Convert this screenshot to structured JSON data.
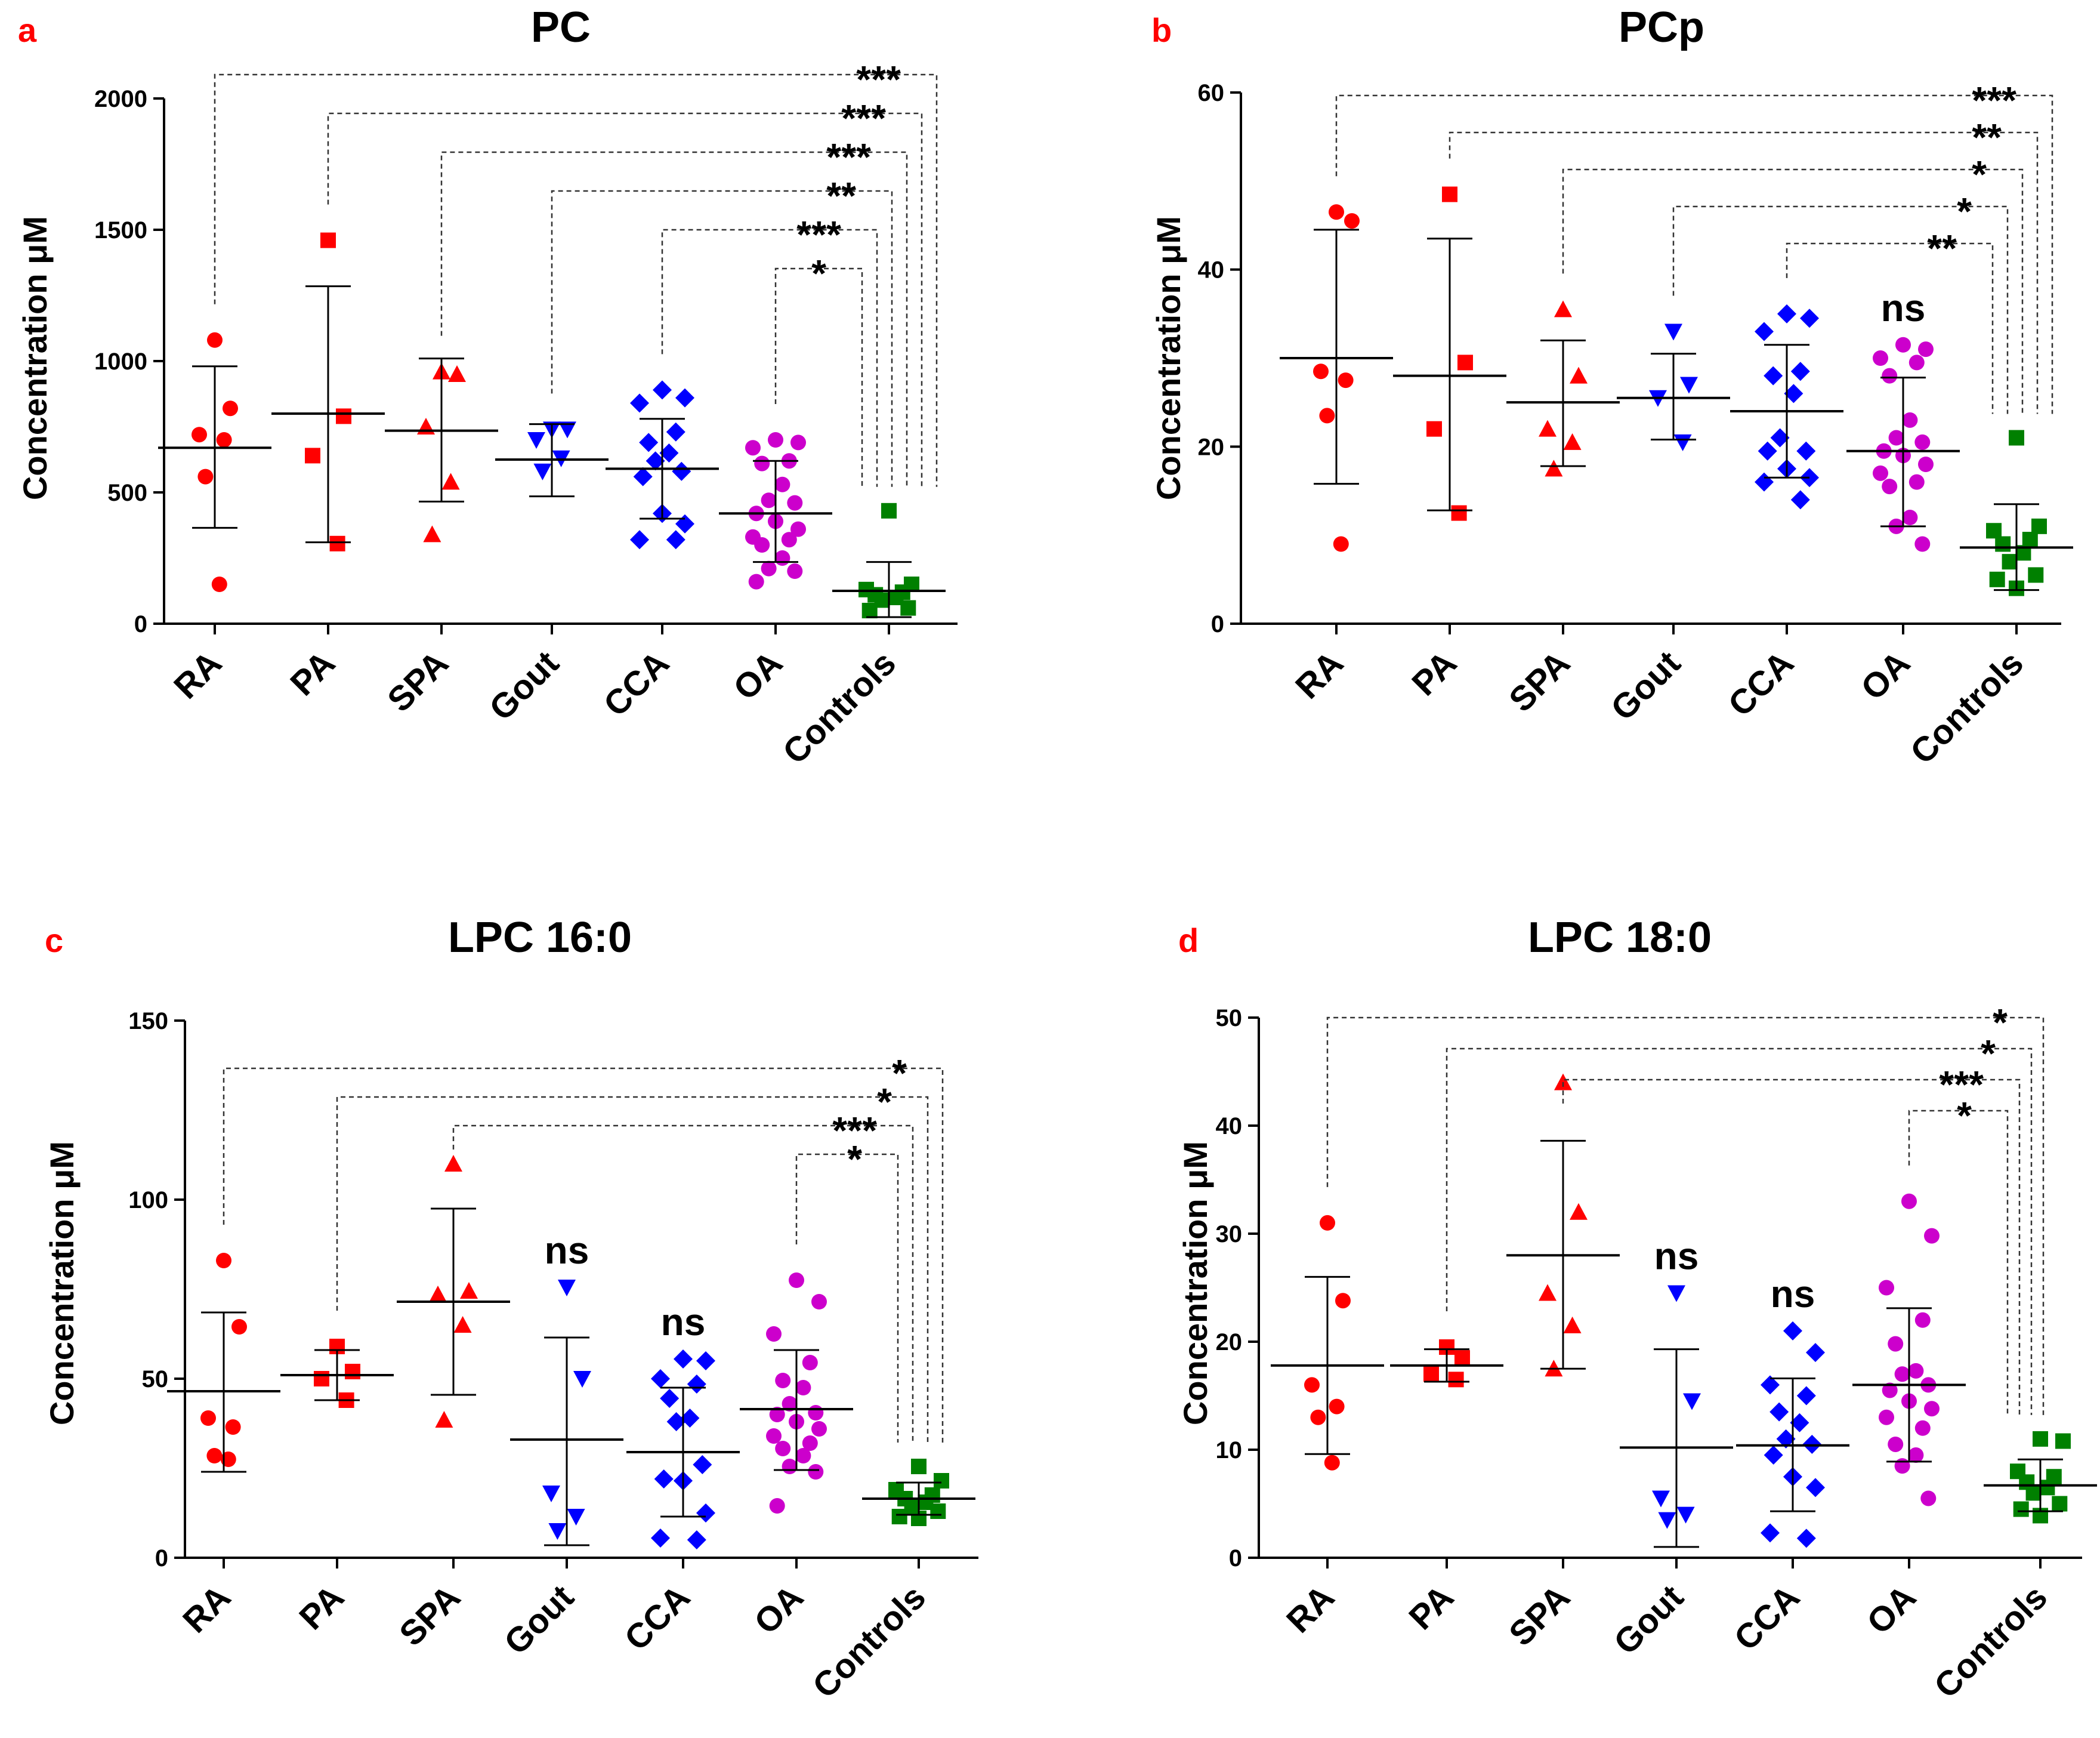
{
  "groups": [
    "RA",
    "PA",
    "SPA",
    "Gout",
    "CCA",
    "OA",
    "Controls"
  ],
  "ylabel": "Concentration μM",
  "colors": {
    "RA": "#ff0000",
    "PA": "#ff0000",
    "SPA": "#ff0000",
    "Gout": "#0000ff",
    "CCA": "#0000ff",
    "OA": "#cc00cc",
    "Controls": "#008000",
    "panel_letter": "#ff0000"
  },
  "markers": {
    "RA": "circle",
    "PA": "square",
    "SPA": "triangle-up",
    "Gout": "triangle-down",
    "CCA": "diamond",
    "OA": "circle",
    "Controls": "square"
  },
  "chart_data": [
    {
      "panel": "a",
      "title": "PC",
      "type": "scatter",
      "ylim": [
        0,
        2000
      ],
      "yticks": [
        "0",
        "500",
        "1000",
        "1500",
        "2000"
      ],
      "series": [
        {
          "name": "RA",
          "values": [
            1080,
            820,
            720,
            700,
            560,
            150
          ],
          "mean": 670,
          "sd_low": 365,
          "sd_high": 980
        },
        {
          "name": "PA",
          "values": [
            1460,
            790,
            640,
            305
          ],
          "mean": 800,
          "sd_low": 310,
          "sd_high": 1285
        },
        {
          "name": "SPA",
          "values": [
            960,
            950,
            750,
            540,
            340
          ],
          "mean": 735,
          "sd_low": 465,
          "sd_high": 1010
        },
        {
          "name": "Gout",
          "values": [
            740,
            740,
            700,
            630,
            580
          ],
          "mean": 625,
          "sd_low": 485,
          "sd_high": 760
        },
        {
          "name": "CCA",
          "values": [
            890,
            860,
            840,
            730,
            690,
            650,
            620,
            580,
            560,
            420,
            380,
            320,
            320
          ],
          "mean": 590,
          "sd_low": 400,
          "sd_high": 780
        },
        {
          "name": "OA",
          "values": [
            700,
            690,
            670,
            620,
            610,
            530,
            470,
            460,
            420,
            390,
            360,
            330,
            320,
            300,
            250,
            210,
            200,
            160
          ],
          "mean": 420,
          "sd_low": 235,
          "sd_high": 620
        },
        {
          "name": "Controls",
          "values": [
            430,
            150,
            130,
            120,
            110,
            100,
            90,
            60,
            50
          ],
          "mean": 125,
          "sd_low": 25,
          "sd_high": 235
        }
      ],
      "comparisons": [
        {
          "group": "RA",
          "label": "***"
        },
        {
          "group": "PA",
          "label": "***"
        },
        {
          "group": "SPA",
          "label": "***"
        },
        {
          "group": "Gout",
          "label": "**"
        },
        {
          "group": "CCA",
          "label": "***"
        },
        {
          "group": "OA",
          "label": "*"
        }
      ]
    },
    {
      "panel": "b",
      "title": "PCp",
      "type": "scatter",
      "ylim": [
        0,
        60
      ],
      "yticks": [
        "0",
        "20",
        "40",
        "60"
      ],
      "series": [
        {
          "name": "RA",
          "values": [
            46.5,
            45.5,
            28.5,
            27.5,
            23.5,
            9
          ],
          "mean": 30,
          "sd_low": 15.8,
          "sd_high": 44.5
        },
        {
          "name": "PA",
          "values": [
            48.5,
            29.5,
            22,
            12.5
          ],
          "mean": 28,
          "sd_low": 12.8,
          "sd_high": 43.5
        },
        {
          "name": "SPA",
          "values": [
            35.5,
            28,
            22,
            20.5,
            17.5
          ],
          "mean": 25,
          "sd_low": 17.8,
          "sd_high": 32
        },
        {
          "name": "Gout",
          "values": [
            33,
            27,
            25.5,
            20.5
          ],
          "mean": 25.5,
          "sd_low": 20.8,
          "sd_high": 30.5
        },
        {
          "name": "CCA",
          "values": [
            35,
            34.5,
            33,
            28.5,
            28,
            26,
            21,
            19.5,
            19.5,
            17.5,
            16.5,
            16,
            14
          ],
          "mean": 24,
          "sd_low": 16.5,
          "sd_high": 31.5
        },
        {
          "name": "OA",
          "values": [
            31.5,
            31,
            30,
            29.5,
            28,
            23,
            21,
            20.5,
            19.5,
            19,
            18,
            17,
            16,
            15.5,
            12,
            11,
            9
          ],
          "mean": 19.5,
          "sd_low": 11,
          "sd_high": 27.8
        },
        {
          "name": "Controls",
          "values": [
            21,
            11,
            10.5,
            9.5,
            9,
            8,
            7,
            5.5,
            5,
            4
          ],
          "mean": 8.6,
          "sd_low": 3.8,
          "sd_high": 13.5
        }
      ],
      "comparisons": [
        {
          "group": "RA",
          "label": "***"
        },
        {
          "group": "PA",
          "label": "**"
        },
        {
          "group": "SPA",
          "label": "*"
        },
        {
          "group": "Gout",
          "label": "*"
        },
        {
          "group": "CCA",
          "label": "**"
        }
      ],
      "group_labels": [
        {
          "group": "OA",
          "label": "ns"
        }
      ]
    },
    {
      "panel": "c",
      "title": "LPC 16:0",
      "type": "scatter",
      "ylim": [
        0,
        150
      ],
      "yticks": [
        "0",
        "50",
        "100",
        "150"
      ],
      "series": [
        {
          "name": "RA",
          "values": [
            83,
            64.5,
            39,
            36.5,
            28.5,
            27.5
          ],
          "mean": 46.5,
          "sd_low": 24,
          "sd_high": 68.5
        },
        {
          "name": "PA",
          "values": [
            59,
            52,
            50,
            44
          ],
          "mean": 51,
          "sd_low": 44,
          "sd_high": 58
        },
        {
          "name": "SPA",
          "values": [
            110,
            74.5,
            73.5,
            65,
            38.5
          ],
          "mean": 71.5,
          "sd_low": 45.5,
          "sd_high": 97.5
        },
        {
          "name": "Gout",
          "values": [
            75.5,
            50,
            18,
            11.5,
            7.5
          ],
          "mean": 33,
          "sd_low": 3.5,
          "sd_high": 61.5
        },
        {
          "name": "CCA",
          "values": [
            55.5,
            55,
            50,
            48.5,
            44.5,
            39,
            38,
            26,
            22,
            21.5,
            12.5,
            5.5,
            5
          ],
          "mean": 29.5,
          "sd_low": 11.5,
          "sd_high": 47.5
        },
        {
          "name": "OA",
          "values": [
            77.5,
            71.5,
            62.5,
            54.5,
            49.5,
            47.5,
            43,
            40.5,
            40,
            38,
            36,
            34,
            32,
            30.5,
            28.5,
            25.5,
            24,
            14.5
          ],
          "mean": 41.5,
          "sd_low": 24.5,
          "sd_high": 58
        },
        {
          "name": "Controls",
          "values": [
            25.5,
            21.5,
            19,
            17.5,
            16.5,
            15.5,
            14,
            13,
            11.5,
            11
          ],
          "mean": 16.5,
          "sd_low": 12,
          "sd_high": 21
        }
      ],
      "comparisons": [
        {
          "group": "RA",
          "label": "*"
        },
        {
          "group": "PA",
          "label": "*"
        },
        {
          "group": "SPA",
          "label": "***"
        },
        {
          "group": "OA",
          "label": "*"
        }
      ],
      "group_labels": [
        {
          "group": "Gout",
          "label": "ns"
        },
        {
          "group": "CCA",
          "label": "ns"
        }
      ]
    },
    {
      "panel": "d",
      "title": "LPC 18:0",
      "type": "scatter",
      "ylim": [
        0,
        50
      ],
      "yticks": [
        "0",
        "10",
        "20",
        "30",
        "40",
        "50"
      ],
      "series": [
        {
          "name": "RA",
          "values": [
            31,
            23.8,
            16,
            14,
            13,
            8.8
          ],
          "mean": 17.8,
          "sd_low": 9.6,
          "sd_high": 26
        },
        {
          "name": "PA",
          "values": [
            19.5,
            18.5,
            17,
            16.5
          ],
          "mean": 17.8,
          "sd_low": 16.3,
          "sd_high": 19.3
        },
        {
          "name": "SPA",
          "values": [
            44,
            32,
            24.5,
            21.5,
            17.5
          ],
          "mean": 28,
          "sd_low": 17.5,
          "sd_high": 38.6
        },
        {
          "name": "Gout",
          "values": [
            24.5,
            14.5,
            5.5,
            4,
            3.5
          ],
          "mean": 10.2,
          "sd_low": 1,
          "sd_high": 19.3
        },
        {
          "name": "CCA",
          "values": [
            21,
            19,
            16,
            15,
            13.5,
            12.5,
            11,
            10.5,
            9.5,
            7.5,
            6.5,
            2.3,
            1.8
          ],
          "mean": 10.4,
          "sd_low": 4.3,
          "sd_high": 16.6
        },
        {
          "name": "OA",
          "values": [
            33,
            29.8,
            25,
            22,
            19.8,
            17.3,
            17,
            16,
            15.5,
            14.5,
            13.8,
            13,
            12,
            10.5,
            9.5,
            8.5,
            5.5
          ],
          "mean": 16,
          "sd_low": 8.9,
          "sd_high": 23.1
        },
        {
          "name": "Controls",
          "values": [
            11,
            10.8,
            8,
            7.5,
            7,
            6.5,
            6,
            5,
            4.5,
            3.9
          ],
          "mean": 6.7,
          "sd_low": 4.3,
          "sd_high": 9.1
        }
      ],
      "comparisons": [
        {
          "group": "RA",
          "label": "*"
        },
        {
          "group": "PA",
          "label": "*"
        },
        {
          "group": "SPA",
          "label": "***"
        },
        {
          "group": "OA",
          "label": "*"
        }
      ],
      "group_labels": [
        {
          "group": "Gout",
          "label": "ns"
        },
        {
          "group": "CCA",
          "label": "ns"
        }
      ]
    }
  ]
}
